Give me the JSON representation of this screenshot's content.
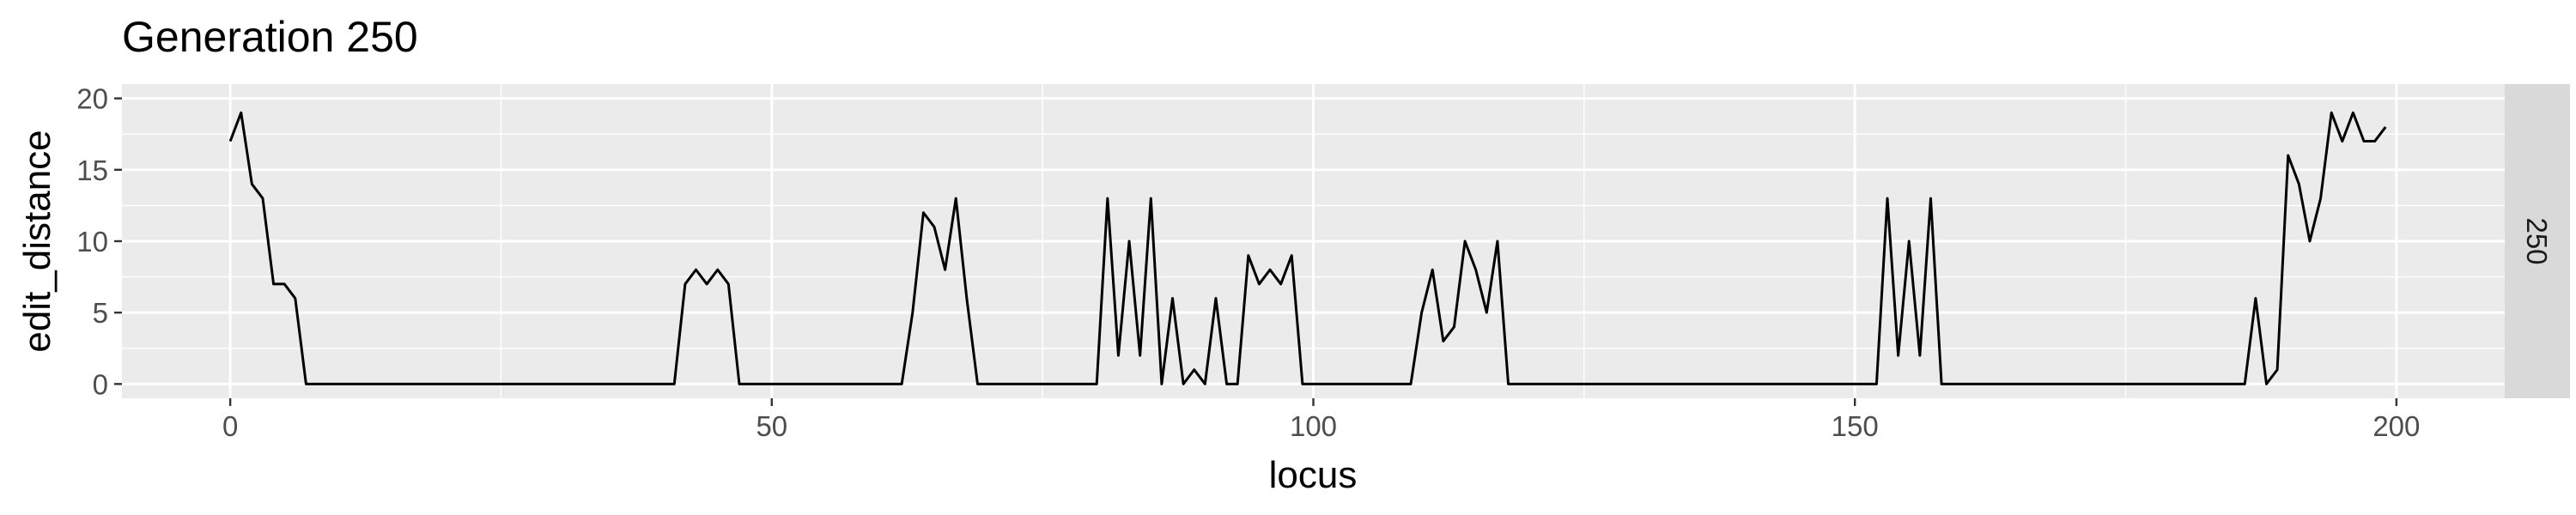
{
  "chart_data": {
    "type": "line",
    "title": "Generation 250",
    "xlabel": "locus",
    "ylabel": "edit_distance",
    "facet_label": "250",
    "xlim": [
      -10,
      210
    ],
    "ylim": [
      -1,
      21
    ],
    "x_ticks": [
      0,
      50,
      100,
      150,
      200
    ],
    "x_tick_labels": [
      "0",
      "50",
      "100",
      "150",
      "200"
    ],
    "x_minor_ticks": [
      25,
      75,
      125,
      175
    ],
    "y_ticks": [
      0,
      5,
      10,
      15,
      20
    ],
    "y_tick_labels": [
      "0",
      "5",
      "10",
      "15",
      "20"
    ],
    "y_minor_ticks": [
      2.5,
      7.5,
      12.5,
      17.5
    ],
    "grid": true,
    "colors": {
      "panel_background": "#ebebeb",
      "grid": "#ffffff",
      "strip_background": "#d9d9d9",
      "line": "#000000",
      "tick_text": "#4d4d4d",
      "axis_ticks": "#333333"
    },
    "series": [
      {
        "x": [
          0,
          1,
          2,
          3,
          4,
          5,
          6,
          7,
          8,
          9,
          10,
          11,
          12,
          13,
          14,
          15,
          16,
          17,
          18,
          19,
          20,
          21,
          22,
          23,
          24,
          25,
          26,
          27,
          28,
          29,
          30,
          31,
          32,
          33,
          34,
          35,
          36,
          37,
          38,
          39,
          40,
          41,
          42,
          43,
          44,
          45,
          46,
          47,
          48,
          49,
          50,
          51,
          52,
          53,
          54,
          55,
          56,
          57,
          58,
          59,
          60,
          61,
          62,
          63,
          64,
          65,
          66,
          67,
          68,
          69,
          70,
          71,
          72,
          73,
          74,
          75,
          76,
          77,
          78,
          79,
          80,
          81,
          82,
          83,
          84,
          85,
          86,
          87,
          88,
          89,
          90,
          91,
          92,
          93,
          94,
          95,
          96,
          97,
          98,
          99,
          100,
          101,
          102,
          103,
          104,
          105,
          106,
          107,
          108,
          109,
          110,
          111,
          112,
          113,
          114,
          115,
          116,
          117,
          118,
          119,
          120,
          121,
          122,
          123,
          124,
          125,
          126,
          127,
          128,
          129,
          130,
          131,
          132,
          133,
          134,
          135,
          136,
          137,
          138,
          139,
          140,
          141,
          142,
          143,
          144,
          145,
          146,
          147,
          148,
          149,
          150,
          151,
          152,
          153,
          154,
          155,
          156,
          157,
          158,
          159,
          160,
          161,
          162,
          163,
          164,
          165,
          166,
          167,
          168,
          169,
          170,
          171,
          172,
          173,
          174,
          175,
          176,
          177,
          178,
          179,
          180,
          181,
          182,
          183,
          184,
          185,
          186,
          187,
          188,
          189,
          190,
          191,
          192,
          193,
          194,
          195,
          196,
          197,
          198,
          199
        ],
        "values": [
          17,
          19,
          14,
          13,
          7,
          7,
          6,
          0,
          0,
          0,
          0,
          0,
          0,
          0,
          0,
          0,
          0,
          0,
          0,
          0,
          0,
          0,
          0,
          0,
          0,
          0,
          0,
          0,
          0,
          0,
          0,
          0,
          0,
          0,
          0,
          0,
          0,
          0,
          0,
          0,
          0,
          0,
          7,
          8,
          7,
          8,
          7,
          0,
          0,
          0,
          0,
          0,
          0,
          0,
          0,
          0,
          0,
          0,
          0,
          0,
          0,
          0,
          0,
          5,
          12,
          11,
          8,
          13,
          6,
          0,
          0,
          0,
          0,
          0,
          0,
          0,
          0,
          0,
          0,
          0,
          0,
          13,
          2,
          10,
          2,
          13,
          0,
          6,
          0,
          1,
          0,
          6,
          0,
          0,
          9,
          7,
          8,
          7,
          9,
          0,
          0,
          0,
          0,
          0,
          0,
          0,
          0,
          0,
          0,
          0,
          5,
          8,
          3,
          4,
          10,
          8,
          5,
          10,
          0,
          0,
          0,
          0,
          0,
          0,
          0,
          0,
          0,
          0,
          0,
          0,
          0,
          0,
          0,
          0,
          0,
          0,
          0,
          0,
          0,
          0,
          0,
          0,
          0,
          0,
          0,
          0,
          0,
          0,
          0,
          0,
          0,
          0,
          0,
          13,
          2,
          10,
          2,
          13,
          0,
          0,
          0,
          0,
          0,
          0,
          0,
          0,
          0,
          0,
          0,
          0,
          0,
          0,
          0,
          0,
          0,
          0,
          0,
          0,
          0,
          0,
          0,
          0,
          0,
          0,
          0,
          0,
          0,
          6,
          0,
          1,
          16,
          14,
          10,
          13,
          19,
          17,
          19,
          17,
          17,
          18
        ]
      }
    ]
  }
}
